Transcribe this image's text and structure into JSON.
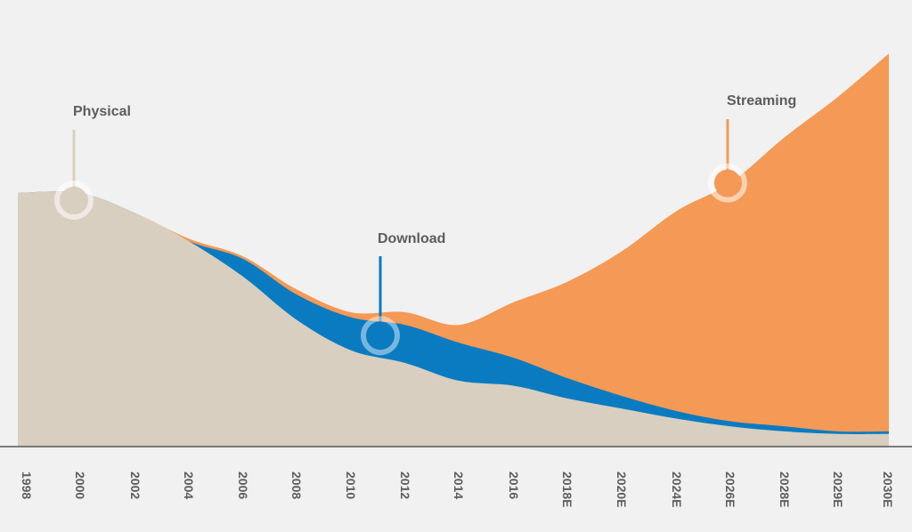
{
  "chart_data": {
    "type": "area",
    "stacked": true,
    "title": "",
    "xlabel": "",
    "ylabel": "",
    "categories": [
      "1998",
      "2000",
      "2002",
      "2004",
      "2006",
      "2008",
      "2010",
      "2012",
      "2014",
      "2016",
      "2018E",
      "2020E",
      "2024E",
      "2026E",
      "2028E",
      "2029E",
      "2030E"
    ],
    "ylim": [
      0,
      155
    ],
    "grid": false,
    "legend": "inline-annotations",
    "series": [
      {
        "name": "Physical",
        "color": "#d9cfc1",
        "values": [
          100,
          100,
          92,
          81,
          67,
          50,
          38,
          33,
          26,
          24,
          19,
          15,
          11,
          8,
          6,
          5,
          5
        ]
      },
      {
        "name": "Download",
        "color": "#0a7bc1",
        "values": [
          0,
          0,
          0,
          0,
          7,
          10,
          13,
          15,
          15,
          11,
          8,
          5,
          3,
          2,
          2,
          1,
          1
        ]
      },
      {
        "name": "Streaming",
        "color": "#f59a56",
        "values": [
          0,
          0,
          0,
          1,
          1,
          2,
          2,
          5,
          7,
          22,
          38,
          57,
          79,
          94,
          114,
          132,
          149
        ]
      }
    ],
    "annotations": [
      {
        "text": "Physical",
        "series": "Physical",
        "category": "2000"
      },
      {
        "text": "Download",
        "series": "Download",
        "category": "2012"
      },
      {
        "text": "Streaming",
        "series": "Streaming",
        "category": "2026E"
      }
    ]
  }
}
